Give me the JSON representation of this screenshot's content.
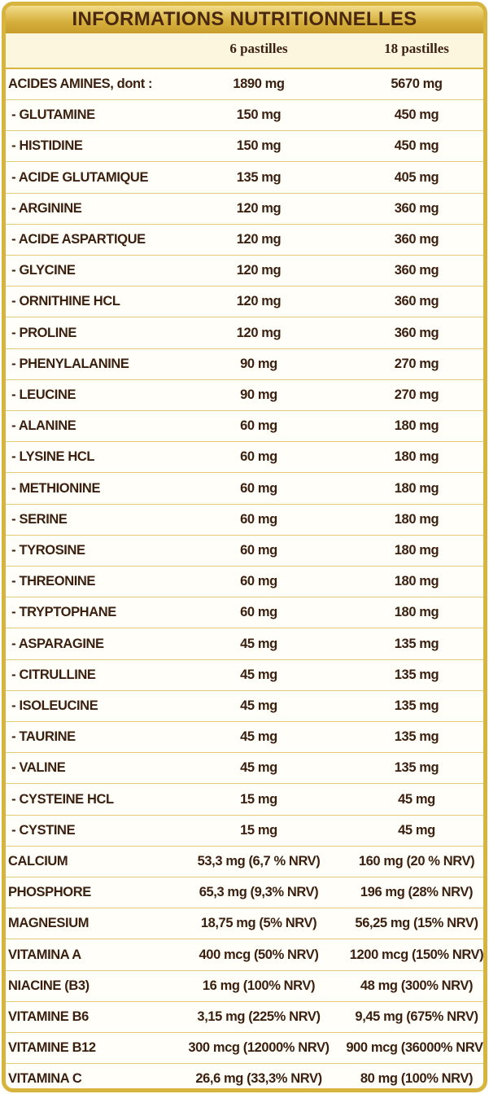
{
  "header": {
    "title": "INFORMATIONS NUTRITIONNELLES"
  },
  "table": {
    "columns": [
      "6 pastilles",
      "18 pastilles"
    ],
    "rows": [
      [
        "ACIDES AMINES, dont :",
        "1890 mg",
        "5670 mg"
      ],
      [
        " - GLUTAMINE",
        "150 mg",
        "450 mg"
      ],
      [
        " - HISTIDINE",
        "150 mg",
        "450 mg"
      ],
      [
        " - ACIDE GLUTAMIQUE",
        "135 mg",
        "405 mg"
      ],
      [
        " - ARGININE",
        "120 mg",
        "360 mg"
      ],
      [
        " - ACIDE ASPARTIQUE",
        "120 mg",
        "360 mg"
      ],
      [
        " - GLYCINE",
        "120 mg",
        "360 mg"
      ],
      [
        " - ORNITHINE HCL",
        "120 mg",
        "360 mg"
      ],
      [
        " - PROLINE",
        "120 mg",
        "360 mg"
      ],
      [
        " - PHENYLALANINE",
        "90 mg",
        "270 mg"
      ],
      [
        " - LEUCINE",
        "90 mg",
        "270 mg"
      ],
      [
        " - ALANINE",
        "60 mg",
        "180 mg"
      ],
      [
        " - LYSINE HCL",
        "60 mg",
        "180 mg"
      ],
      [
        " - METHIONINE",
        "60 mg",
        "180 mg"
      ],
      [
        " - SERINE",
        "60 mg",
        "180 mg"
      ],
      [
        " - TYROSINE",
        "60 mg",
        "180 mg"
      ],
      [
        " - THREONINE",
        "60 mg",
        "180 mg"
      ],
      [
        " - TRYPTOPHANE",
        "60 mg",
        "180 mg"
      ],
      [
        " - ASPARAGINE",
        "45 mg",
        "135 mg"
      ],
      [
        " - CITRULLINE",
        "45 mg",
        "135 mg"
      ],
      [
        " - ISOLEUCINE",
        "45 mg",
        "135 mg"
      ],
      [
        " - TAURINE",
        "45 mg",
        "135 mg"
      ],
      [
        " - VALINE",
        "45 mg",
        "135 mg"
      ],
      [
        " - CYSTEINE HCL",
        "15 mg",
        "45 mg"
      ],
      [
        " - CYSTINE",
        "15 mg",
        "45 mg"
      ],
      [
        "CALCIUM",
        "53,3 mg (6,7 % NRV)",
        "160 mg (20 % NRV)"
      ],
      [
        "PHOSPHORE",
        "65,3 mg (9,3% NRV)",
        "196 mg (28% NRV)"
      ],
      [
        "MAGNESIUM",
        "18,75 mg (5% NRV)",
        "56,25 mg (15% NRV)"
      ],
      [
        "VITAMINA A",
        "400 mcg (50% NRV)",
        "1200 mcg (150% NRV)"
      ],
      [
        "NIACINE (B3)",
        "16 mg (100% NRV)",
        "48 mg (300% NRV)"
      ],
      [
        "VITAMINE B6",
        "3,15 mg (225% NRV)",
        "9,45 mg (675% NRV)"
      ],
      [
        "VITAMINE B12",
        "300 mcg (12000% NRV)",
        "900 mcg (36000% NRV)"
      ],
      [
        "VITAMINA C",
        "26,6 mg (33,3% NRV)",
        "80 mg (100% NRV)"
      ]
    ]
  }
}
